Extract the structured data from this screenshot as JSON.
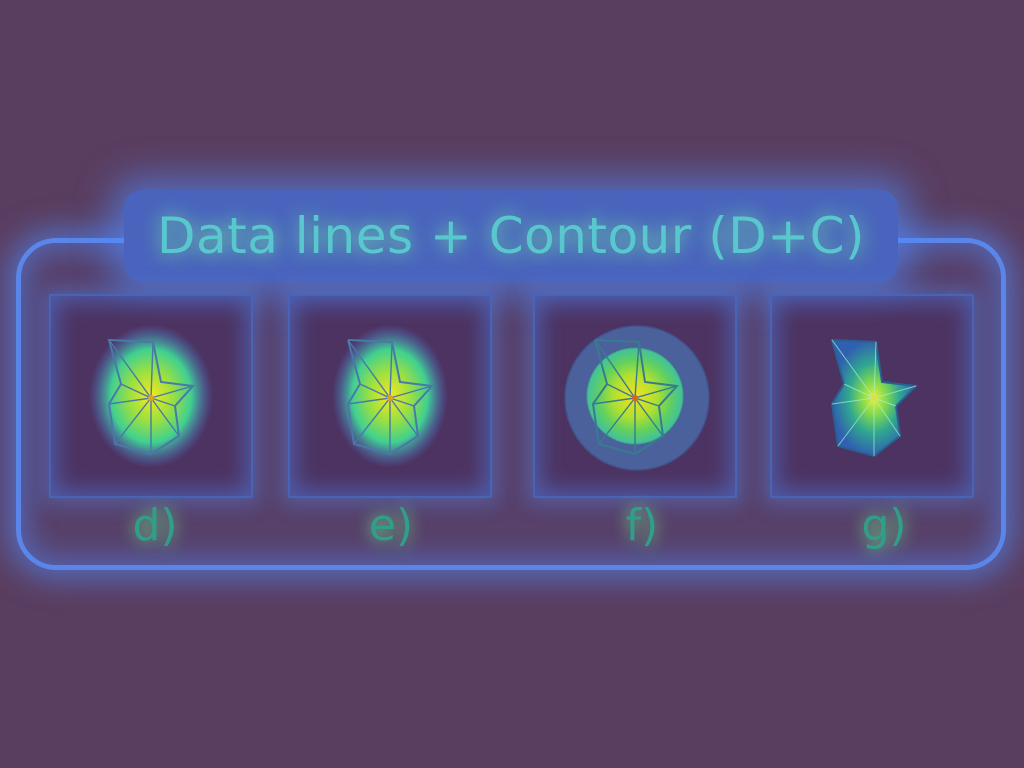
{
  "title": "Data lines + Contour (D+C)",
  "panels": [
    {
      "label": "d)"
    },
    {
      "label": "e)"
    },
    {
      "label": "f)"
    },
    {
      "label": "g)"
    }
  ],
  "colors": {
    "background": "#5a3e60",
    "frame": "#5a86ea",
    "title_box": "#4a64bd",
    "title_text": "#58c8ce",
    "glyph_line": "#4a78a8",
    "heat_core": "#f0e020",
    "label": "#2f9f8a"
  }
}
